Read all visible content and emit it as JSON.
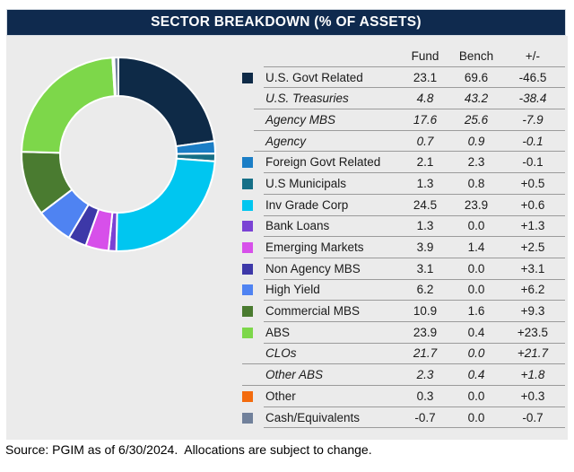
{
  "title": "SECTOR BREAKDOWN (% OF ASSETS)",
  "footer": "Source: PGIM as of 6/30/2024.  Allocations are subject to change.",
  "table": {
    "columns": [
      "Fund",
      "Bench",
      "+/-"
    ],
    "rows": [
      {
        "label": "U.S. Govt Related",
        "fund": "23.1",
        "bench": "69.6",
        "delta": "-46.5",
        "swatch": "#0E2A47"
      },
      {
        "label": "U.S. Treasuries",
        "fund": "4.8",
        "bench": "43.2",
        "delta": "-38.4"
      },
      {
        "label": "Agency MBS",
        "fund": "17.6",
        "bench": "25.6",
        "delta": "-7.9"
      },
      {
        "label": "Agency",
        "fund": "0.7",
        "bench": "0.9",
        "delta": "-0.1"
      },
      {
        "label": "Foreign Govt Related",
        "fund": "2.1",
        "bench": "2.3",
        "delta": "-0.1",
        "swatch": "#1B7EC6"
      },
      {
        "label": "U.S Municipals",
        "fund": "1.3",
        "bench": "0.8",
        "delta": "+0.5",
        "swatch": "#156F87"
      },
      {
        "label": "Inv Grade Corp",
        "fund": "24.5",
        "bench": "23.9",
        "delta": "+0.6",
        "swatch": "#00C6F0"
      },
      {
        "label": "Bank Loans",
        "fund": "1.3",
        "bench": "0.0",
        "delta": "+1.3",
        "swatch": "#7A42D4"
      },
      {
        "label": "Emerging Markets",
        "fund": "3.9",
        "bench": "1.4",
        "delta": "+2.5",
        "swatch": "#D750EA"
      },
      {
        "label": "Non Agency MBS",
        "fund": "3.1",
        "bench": "0.0",
        "delta": "+3.1",
        "swatch": "#3D38A8"
      },
      {
        "label": "High Yield",
        "fund": "6.2",
        "bench": "0.0",
        "delta": "+6.2",
        "swatch": "#4F83F2"
      },
      {
        "label": "Commercial MBS",
        "fund": "10.9",
        "bench": "1.6",
        "delta": "+9.3",
        "swatch": "#4A7B30"
      },
      {
        "label": "ABS",
        "fund": "23.9",
        "bench": "0.4",
        "delta": "+23.5",
        "swatch": "#7DD74A"
      },
      {
        "label": "CLOs",
        "fund": "21.7",
        "bench": "0.0",
        "delta": "+21.7"
      },
      {
        "label": "Other ABS",
        "fund": "2.3",
        "bench": "0.4",
        "delta": "+1.8"
      },
      {
        "label": "Other",
        "fund": "0.3",
        "bench": "0.0",
        "delta": "+0.3",
        "swatch": "#F36B0E"
      },
      {
        "label": "Cash/Equivalents",
        "fund": "-0.7",
        "bench": "0.0",
        "delta": "-0.7",
        "swatch": "#71819B"
      }
    ]
  },
  "chart_data": {
    "type": "pie",
    "variant": "donut",
    "title": "SECTOR BREAKDOWN (% OF ASSETS)",
    "value_column_plotted": "Fund",
    "start_angle_deg": 0,
    "direction": "clockwise",
    "hole_ratio": 0.6,
    "gap_color": "#ffffff",
    "background": "#EBEBEB",
    "segments": [
      {
        "label": "U.S. Govt Related",
        "value": 23.1,
        "color": "#0E2A47"
      },
      {
        "label": "Foreign Govt Related",
        "value": 2.1,
        "color": "#1B7EC6"
      },
      {
        "label": "U.S Municipals",
        "value": 1.3,
        "color": "#156F87"
      },
      {
        "label": "Inv Grade Corp",
        "value": 24.5,
        "color": "#00C6F0"
      },
      {
        "label": "Bank Loans",
        "value": 1.3,
        "color": "#7A42D4"
      },
      {
        "label": "Emerging Markets",
        "value": 3.9,
        "color": "#D750EA"
      },
      {
        "label": "Non Agency MBS",
        "value": 3.1,
        "color": "#3D38A8"
      },
      {
        "label": "High Yield",
        "value": 6.2,
        "color": "#4F83F2"
      },
      {
        "label": "Commercial MBS",
        "value": 10.9,
        "color": "#4A7B30"
      },
      {
        "label": "ABS",
        "value": 23.9,
        "color": "#7DD74A"
      },
      {
        "label": "Other",
        "value": 0.3,
        "color": "#F36B0E"
      },
      {
        "label": "Cash/Equivalents",
        "value": -0.7,
        "color": "#71819B"
      }
    ]
  }
}
